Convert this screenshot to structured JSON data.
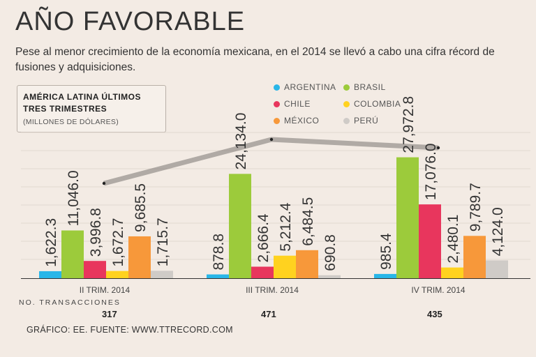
{
  "title": "AÑO FAVORABLE",
  "subtitle": "Pese al menor crecimiento de la economía mexicana, en el 2014 se llevó a cabo una cifra récord de fusiones y adquisiciones.",
  "info_box": {
    "title": "AMÉRICA LATINA ÚLTIMOS TRES TRIMESTRES",
    "units": "(MILLONES DE DÓLARES)"
  },
  "transactions": {
    "label": "NO. TRANSACCIONES",
    "values": [
      "317",
      "471",
      "435"
    ]
  },
  "footer": "GRÁFICO: EE. FUENTE: WWW.TTRECORD.COM",
  "chart_data": {
    "type": "bar",
    "title": "AMÉRICA LATINA ÚLTIMOS TRES TRIMESTRES",
    "ylabel": "MILLONES DE DÓLARES",
    "categories": [
      "II TRIM. 2014",
      "III TRIM. 2014",
      "IV TRIM. 2014"
    ],
    "ylim": [
      0,
      29000
    ],
    "series": [
      {
        "name": "ARGENTINA",
        "color": "#29b6e8",
        "values": [
          1622.3,
          878.8,
          985.4
        ],
        "labels": [
          "1,622.3",
          "878.8",
          "985.4"
        ]
      },
      {
        "name": "BRASIL",
        "color": "#9ccb3b",
        "values": [
          11046.0,
          24134.0,
          27972.8
        ],
        "labels": [
          "11,046.0",
          "24,134.0",
          "27,972.8"
        ]
      },
      {
        "name": "CHILE",
        "color": "#e8365d",
        "values": [
          3996.8,
          2666.4,
          17076.0
        ],
        "labels": [
          "3,996.8",
          "2,666.4",
          "17,076.0"
        ]
      },
      {
        "name": "COLOMBIA",
        "color": "#ffd21f",
        "values": [
          1672.7,
          5212.4,
          2480.1
        ],
        "labels": [
          "1,672.7",
          "5,212.4",
          "2,480.1"
        ]
      },
      {
        "name": "MÉXICO",
        "color": "#f7983a",
        "values": [
          9685.5,
          6484.5,
          9789.7
        ],
        "labels": [
          "9,685.5",
          "6,484.5",
          "9,789.7"
        ]
      },
      {
        "name": "PERÚ",
        "color": "#cfcbc7",
        "values": [
          1715.7,
          690.8,
          4124.0
        ],
        "labels": [
          "1,715.7",
          "690.8",
          "4,124.0"
        ]
      }
    ],
    "transactions": [
      317,
      471,
      435
    ],
    "legend_position": "top-center"
  }
}
